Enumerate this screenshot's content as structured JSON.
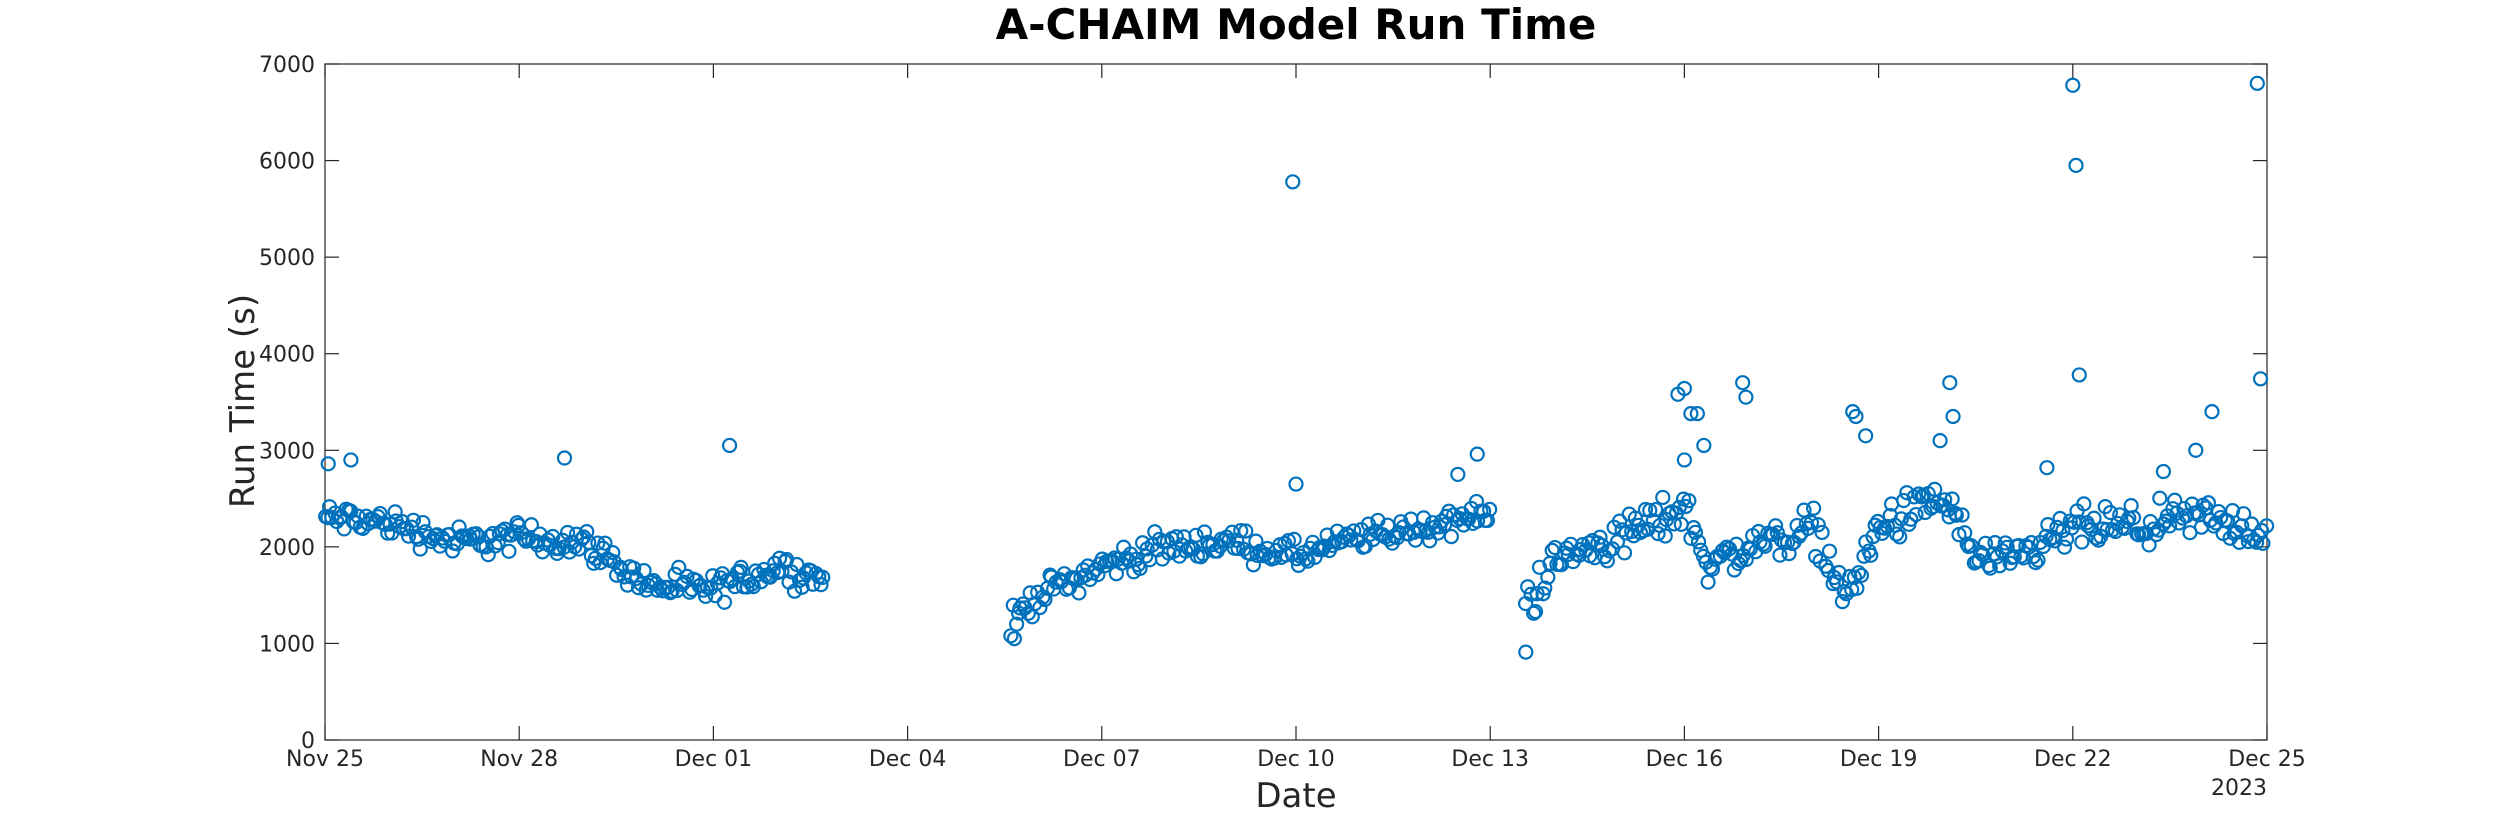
{
  "chart_data": {
    "type": "scatter",
    "title": "A-CHAIM Model Run Time",
    "xlabel": "Date",
    "ylabel": "Run Time (s)",
    "year_label": "2023",
    "x_start": "Nov 25",
    "x_end": "Dec 25",
    "ylim": [
      0,
      7000
    ],
    "yticks": [
      0,
      1000,
      2000,
      3000,
      4000,
      5000,
      6000,
      7000
    ],
    "xticks": [
      {
        "value": 0,
        "label": "Nov 25"
      },
      {
        "value": 3,
        "label": "Nov 28"
      },
      {
        "value": 6,
        "label": "Dec 01"
      },
      {
        "value": 9,
        "label": "Dec 04"
      },
      {
        "value": 12,
        "label": "Dec 07"
      },
      {
        "value": 15,
        "label": "Dec 10"
      },
      {
        "value": 18,
        "label": "Dec 13"
      },
      {
        "value": 21,
        "label": "Dec 16"
      },
      {
        "value": 24,
        "label": "Dec 19"
      },
      {
        "value": 27,
        "label": "Dec 22"
      },
      {
        "value": 30,
        "label": "Dec 25"
      }
    ],
    "marker": "circle",
    "color": "#0072BD",
    "grid": false,
    "segments": [
      {
        "from": 0.0,
        "to": 7.7,
        "step": 0.037,
        "base": [
          [
            0,
            2300
          ],
          [
            1,
            2250
          ],
          [
            2,
            2050
          ],
          [
            3,
            2100
          ],
          [
            4,
            2050
          ],
          [
            5,
            1600
          ],
          [
            6,
            1550
          ],
          [
            7,
            1800
          ],
          [
            7.7,
            1650
          ]
        ],
        "spread": 230
      },
      {
        "from": 10.6,
        "to": 18.0,
        "step": 0.037,
        "base": [
          [
            10.6,
            1200
          ],
          [
            11,
            1500
          ],
          [
            12,
            1800
          ],
          [
            13,
            2000
          ],
          [
            14,
            2050
          ],
          [
            15,
            1900
          ],
          [
            16,
            2100
          ],
          [
            17,
            2200
          ],
          [
            18,
            2350
          ]
        ],
        "spread": 220
      },
      {
        "from": 18.55,
        "to": 30.0,
        "step": 0.037,
        "base": [
          [
            18.55,
            1400
          ],
          [
            19,
            1850
          ],
          [
            20,
            2100
          ],
          [
            21,
            2400
          ],
          [
            21.4,
            1800
          ],
          [
            22,
            2000
          ],
          [
            23,
            2200
          ],
          [
            23.5,
            1450
          ],
          [
            24,
            2200
          ],
          [
            25,
            2500
          ],
          [
            25.5,
            1900
          ],
          [
            26,
            1800
          ],
          [
            27,
            2200
          ],
          [
            28,
            2200
          ],
          [
            29,
            2300
          ],
          [
            30,
            2150
          ]
        ],
        "spread": 320
      }
    ],
    "outliers": [
      {
        "x": 0.05,
        "y": 2860
      },
      {
        "x": 0.4,
        "y": 2900
      },
      {
        "x": 3.7,
        "y": 2920
      },
      {
        "x": 6.25,
        "y": 3050
      },
      {
        "x": 10.65,
        "y": 1050
      },
      {
        "x": 14.95,
        "y": 5780
      },
      {
        "x": 15.0,
        "y": 2650
      },
      {
        "x": 17.5,
        "y": 2750
      },
      {
        "x": 17.8,
        "y": 2960
      },
      {
        "x": 18.55,
        "y": 910
      },
      {
        "x": 20.9,
        "y": 3580
      },
      {
        "x": 21.0,
        "y": 3640
      },
      {
        "x": 21.1,
        "y": 3380
      },
      {
        "x": 21.2,
        "y": 3380
      },
      {
        "x": 21.3,
        "y": 3050
      },
      {
        "x": 21.0,
        "y": 2900
      },
      {
        "x": 21.9,
        "y": 3700
      },
      {
        "x": 21.95,
        "y": 3550
      },
      {
        "x": 23.6,
        "y": 3400
      },
      {
        "x": 23.65,
        "y": 3350
      },
      {
        "x": 23.8,
        "y": 3150
      },
      {
        "x": 25.1,
        "y": 3700
      },
      {
        "x": 25.15,
        "y": 3350
      },
      {
        "x": 24.95,
        "y": 3100
      },
      {
        "x": 27.0,
        "y": 6780
      },
      {
        "x": 27.05,
        "y": 5950
      },
      {
        "x": 27.1,
        "y": 3780
      },
      {
        "x": 26.6,
        "y": 2820
      },
      {
        "x": 28.4,
        "y": 2780
      },
      {
        "x": 28.9,
        "y": 3000
      },
      {
        "x": 29.15,
        "y": 3400
      },
      {
        "x": 29.85,
        "y": 6800
      },
      {
        "x": 29.9,
        "y": 3740
      }
    ]
  }
}
